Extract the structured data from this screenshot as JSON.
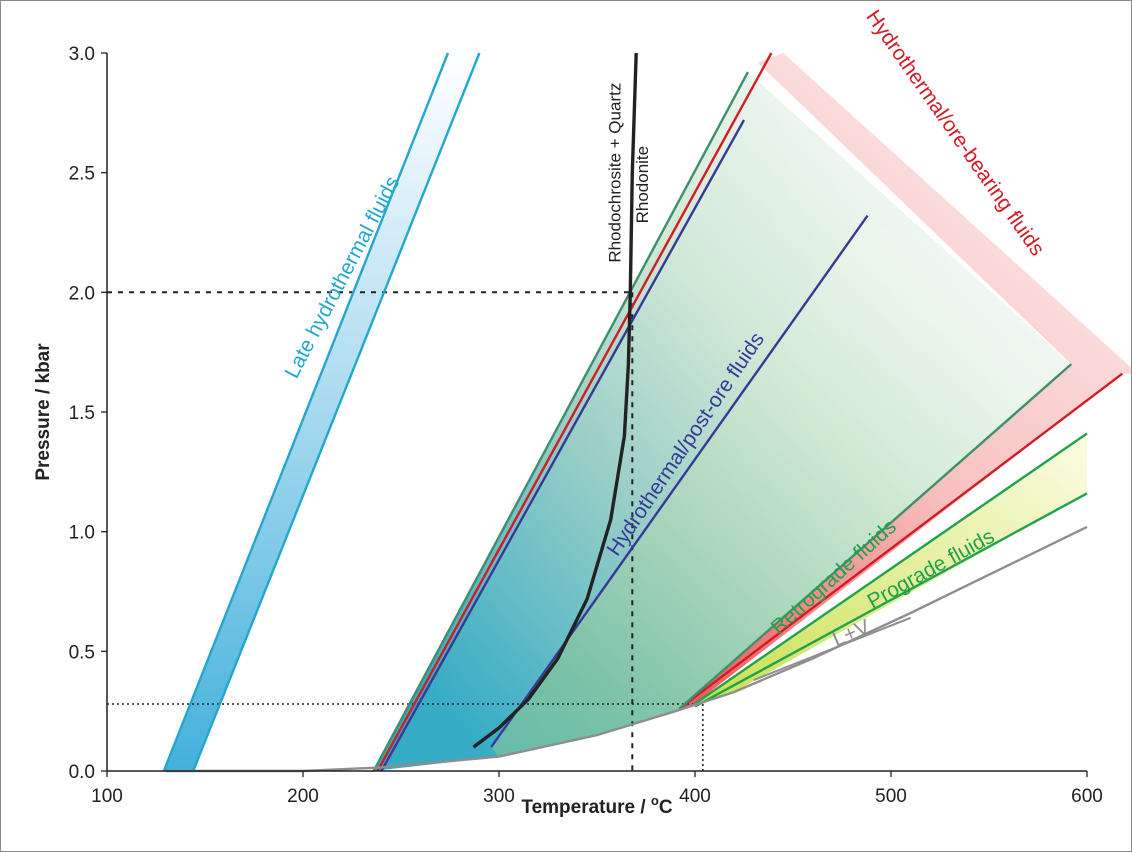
{
  "chart_data": {
    "type": "line",
    "xlabel": "Temperature / ",
    "xlabel_sup": "o",
    "xlabel_unit": "C",
    "ylabel": "Pressure / kbar",
    "xlim": [
      100,
      600
    ],
    "ylim": [
      0,
      3.0
    ],
    "xticks": [
      100,
      200,
      300,
      400,
      500,
      600
    ],
    "yticks": [
      0.0,
      0.5,
      1.0,
      1.5,
      2.0,
      2.5,
      3.0
    ],
    "xtick_labels": [
      "100",
      "200",
      "300",
      "400",
      "500",
      "600"
    ],
    "ytick_labels": [
      "0.0",
      "0.5",
      "1.0",
      "1.5",
      "2.0",
      "2.5",
      "3.0"
    ],
    "colors": {
      "late": "#23a7cf",
      "hydro_post": "#363a96",
      "ore": "#d21c26",
      "retro": "#3f8f6d",
      "pro": "#21a24c",
      "mineral": "#222222",
      "lv": "#8e8e8e"
    },
    "lv_curve": {
      "label": "L+V",
      "points": [
        [
          130,
          0.0
        ],
        [
          200,
          0.0
        ],
        [
          240,
          0.015
        ],
        [
          300,
          0.06
        ],
        [
          350,
          0.15
        ],
        [
          390,
          0.25
        ],
        [
          420,
          0.33
        ],
        [
          460,
          0.47
        ],
        [
          510,
          0.66
        ],
        [
          550,
          0.82
        ],
        [
          600,
          1.02
        ]
      ],
      "label_line": [
        [
          430,
          0.38
        ],
        [
          510,
          0.64
        ]
      ]
    },
    "series": [
      {
        "name": "Late hydrothermal fluids",
        "color_key": "late",
        "lines": [
          [
            [
              129,
              0.0
            ],
            [
              274,
              3.0
            ]
          ],
          [
            [
              144,
              0.0
            ],
            [
              290,
              3.0
            ]
          ]
        ]
      },
      {
        "name": "Hydrothermal/ore-bearing fluids",
        "color_key": "ore",
        "lines": [
          [
            [
              238,
              0.0
            ],
            [
              439,
              3.0
            ]
          ],
          [
            [
              392,
              0.26
            ],
            [
              618,
              1.66
            ]
          ]
        ]
      },
      {
        "name": "Hydrothermal/post-ore fluids",
        "color_key": "hydro_post",
        "lines": [
          [
            [
              240,
              0.0
            ],
            [
              425,
              2.72
            ]
          ],
          [
            [
              296,
              0.1
            ],
            [
              488,
              2.32
            ]
          ]
        ]
      },
      {
        "name": "Retrograde fluids",
        "color_key": "retro",
        "lines": [
          [
            [
              236,
              0.0
            ],
            [
              427,
              2.92
            ]
          ],
          [
            [
              392,
              0.26
            ],
            [
              592,
              1.7
            ]
          ]
        ]
      },
      {
        "name": "Prograde fluids",
        "color_key": "pro",
        "lines": [
          [
            [
              398,
              0.27
            ],
            [
              600,
              1.41
            ]
          ],
          [
            [
              400,
              0.27
            ],
            [
              600,
              1.16
            ]
          ]
        ]
      }
    ],
    "reaction_curve": {
      "label_low": "Rhodochrosite + Quartz",
      "label_high": "Rhodonite",
      "points": [
        [
          287,
          0.1
        ],
        [
          300,
          0.18
        ],
        [
          315,
          0.3
        ],
        [
          330,
          0.47
        ],
        [
          345,
          0.72
        ],
        [
          357,
          1.05
        ],
        [
          364,
          1.4
        ],
        [
          366,
          1.7
        ],
        [
          367,
          2.0
        ],
        [
          368,
          2.5
        ],
        [
          370,
          3.0
        ]
      ]
    },
    "reference_lines": [
      {
        "style": "dashed",
        "points": [
          [
            100,
            2.0
          ],
          [
            368,
            2.0
          ]
        ]
      },
      {
        "style": "dashed",
        "points": [
          [
            368,
            2.0
          ],
          [
            368,
            0.0
          ]
        ]
      },
      {
        "style": "dotted",
        "points": [
          [
            100,
            0.28
          ],
          [
            404,
            0.28
          ]
        ]
      },
      {
        "style": "dotted",
        "points": [
          [
            404,
            0.28
          ],
          [
            404,
            0.0
          ]
        ]
      }
    ],
    "fills": [
      {
        "key": "late_fill",
        "poly": [
          [
            129,
            0.0
          ],
          [
            274,
            3.0
          ],
          [
            290,
            3.0
          ],
          [
            144,
            0.0
          ]
        ]
      },
      {
        "key": "main_fill",
        "poly": [
          [
            236,
            0.0
          ],
          [
            427,
            2.92
          ],
          [
            592,
            1.7
          ],
          [
            392,
            0.26
          ],
          [
            350,
            0.15
          ],
          [
            300,
            0.06
          ]
        ]
      },
      {
        "key": "ore_band",
        "poly": [
          [
            432,
            2.96
          ],
          [
            445,
            3.0
          ],
          [
            626,
            1.66
          ],
          [
            618,
            1.66
          ],
          [
            398,
            0.27
          ],
          [
            392,
            0.26
          ],
          [
            592,
            1.7
          ]
        ]
      },
      {
        "key": "pro_fill",
        "poly": [
          [
            398,
            0.27
          ],
          [
            600,
            1.41
          ],
          [
            600,
            1.16
          ],
          [
            420,
            0.33
          ]
        ]
      }
    ],
    "annotations": [
      {
        "text": "Late hydrothermal fluids",
        "color_key": "late",
        "at": [
          223,
          2.05
        ],
        "rotate": -62.5
      },
      {
        "text": "Hydrothermal/post-ore fluids",
        "color_key": "hydro_post",
        "at": [
          398,
          1.35
        ],
        "rotate": -56
      },
      {
        "text": "Hydrothermal/ore-bearing fluids",
        "color_key": "ore",
        "at": [
          530,
          2.65
        ],
        "rotate": 55
      },
      {
        "text": "Retrograde fluids",
        "color_key": "pro",
        "at": [
          473,
          0.79
        ],
        "rotate": -42
      },
      {
        "text": "Prograde fluids",
        "color_key": "pro",
        "at": [
          522,
          0.82
        ],
        "rotate": -29
      },
      {
        "text": "L+V",
        "color_key": "lv",
        "at": [
          481,
          0.55
        ],
        "rotate": -23
      }
    ]
  }
}
